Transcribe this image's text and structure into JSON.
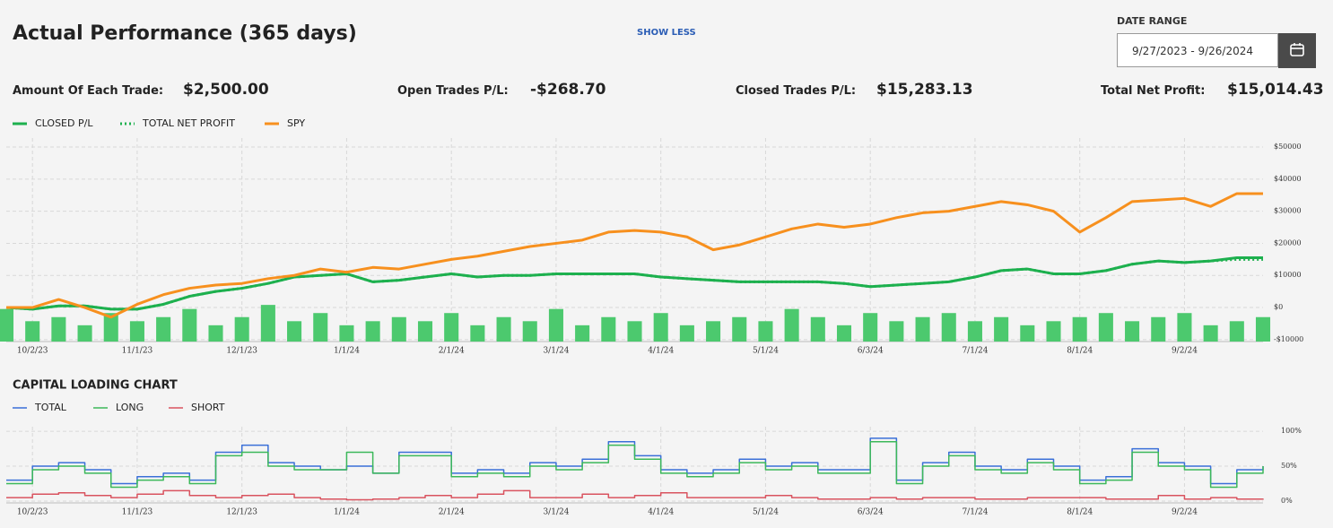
{
  "header": {
    "title": "Actual Performance (365 days)",
    "toggle": "SHOW LESS",
    "date_range": {
      "label": "DATE RANGE",
      "value": "9/27/2023 - 9/26/2024"
    }
  },
  "stats": [
    {
      "label": "Amount Of Each Trade:",
      "value": "$2,500.00"
    },
    {
      "label": "Open Trades P/L:",
      "value": "-$268.70"
    },
    {
      "label": "Closed Trades P/L:",
      "value": "$15,283.13"
    },
    {
      "label": "Total Net Profit:",
      "value": "$15,014.43"
    }
  ],
  "chart_data": [
    {
      "type": "line",
      "grid": true,
      "categories": [
        null,
        "10/2/23",
        null,
        null,
        null,
        "11/1/23",
        null,
        null,
        null,
        "12/1/23",
        null,
        null,
        null,
        "1/1/24",
        null,
        null,
        null,
        "2/1/24",
        null,
        null,
        null,
        "3/1/24",
        null,
        null,
        null,
        "4/1/24",
        null,
        null,
        null,
        "5/1/24",
        null,
        null,
        null,
        "6/3/24",
        null,
        null,
        null,
        "7/1/24",
        null,
        null,
        null,
        "8/1/24",
        null,
        null,
        null,
        "9/2/24",
        null,
        null,
        null
      ],
      "ylim": [
        -10600,
        52800
      ],
      "yticks": [
        {
          "value": -10000,
          "label": "-$10000"
        },
        {
          "value": 0,
          "label": "$0"
        },
        {
          "value": 10000,
          "label": "$10000"
        },
        {
          "value": 20000,
          "label": "$20000"
        },
        {
          "value": 30000,
          "label": "$30000"
        },
        {
          "value": 40000,
          "label": "$40000"
        },
        {
          "value": 50000,
          "label": "$50000"
        }
      ],
      "y2lim": [
        0,
        50
      ],
      "series": [
        {
          "type": "bar",
          "axis": "y2",
          "color": "#4cc96e",
          "values": [
            8,
            5,
            6,
            4,
            7,
            5,
            6,
            8,
            4,
            6,
            9,
            5,
            7,
            4,
            5,
            6,
            5,
            7,
            4,
            6,
            5,
            8,
            4,
            6,
            5,
            7,
            4,
            5,
            6,
            5,
            8,
            6,
            4,
            7,
            5,
            6,
            7,
            5,
            6,
            4,
            5,
            6,
            7,
            5,
            6,
            7,
            4,
            5,
            6
          ]
        },
        {
          "name": "CLOSED P/L",
          "color": "#1db04e",
          "line_style": "solid",
          "values": [
            0,
            -500,
            500,
            500,
            -500,
            -500,
            1000,
            3500,
            5000,
            6000,
            7500,
            9500,
            10000,
            10500,
            8000,
            8500,
            9500,
            10500,
            9500,
            10000,
            10000,
            10500,
            10500,
            10500,
            10500,
            9500,
            9000,
            8500,
            8000,
            8000,
            8000,
            8000,
            7500,
            6500,
            7000,
            7500,
            8000,
            9500,
            11500,
            12000,
            10500,
            10500,
            11500,
            13500,
            14500,
            14000,
            14500,
            15500,
            15500
          ]
        },
        {
          "name": "TOTAL NET PROFIT",
          "color": "#1db04e",
          "line_style": "dotted",
          "values": [
            0,
            -500,
            500,
            500,
            -500,
            -500,
            1000,
            3500,
            5000,
            6000,
            7500,
            9500,
            10000,
            10500,
            8000,
            8500,
            9500,
            10500,
            9500,
            10000,
            10000,
            10500,
            10500,
            10500,
            10500,
            9500,
            9000,
            8500,
            8000,
            8000,
            8000,
            8000,
            7500,
            6500,
            7000,
            7500,
            8000,
            9500,
            11500,
            12000,
            10500,
            10500,
            11500,
            13500,
            14500,
            14000,
            14500,
            15000,
            15000
          ]
        },
        {
          "name": "SPY",
          "color": "#f7901e",
          "line_style": "solid",
          "values": [
            0,
            0,
            2500,
            0,
            -3000,
            1000,
            4000,
            6000,
            7000,
            7500,
            9000,
            10000,
            12000,
            11000,
            12500,
            12000,
            13500,
            15000,
            16000,
            17500,
            19000,
            20000,
            21000,
            23500,
            24000,
            23500,
            22000,
            18000,
            19500,
            22000,
            24500,
            26000,
            25000,
            26000,
            28000,
            29500,
            30000,
            31500,
            33000,
            32000,
            30000,
            23500,
            28000,
            33000,
            33500,
            34000,
            31500,
            35500,
            35500
          ]
        }
      ]
    },
    {
      "type": "line",
      "step": true,
      "grid": true,
      "title": "CAPITAL LOADING CHART",
      "categories": [
        null,
        "10/2/23",
        null,
        null,
        null,
        "11/1/23",
        null,
        null,
        null,
        "12/1/23",
        null,
        null,
        null,
        "1/1/24",
        null,
        null,
        null,
        "2/1/24",
        null,
        null,
        null,
        "3/1/24",
        null,
        null,
        null,
        "4/1/24",
        null,
        null,
        null,
        "5/1/24",
        null,
        null,
        null,
        "6/3/24",
        null,
        null,
        null,
        "7/1/24",
        null,
        null,
        null,
        "8/1/24",
        null,
        null,
        null,
        "9/2/24",
        null,
        null,
        null
      ],
      "ylim": [
        -2.5,
        106.5
      ],
      "yticks": [
        {
          "value": 0,
          "label": "0%"
        },
        {
          "value": 50,
          "label": "50%"
        },
        {
          "value": 100,
          "label": "100%"
        }
      ],
      "series": [
        {
          "name": "TOTAL",
          "color": "#3a6fd8",
          "values": [
            30,
            50,
            55,
            45,
            25,
            35,
            40,
            30,
            70,
            80,
            55,
            50,
            45,
            50,
            40,
            70,
            70,
            40,
            45,
            40,
            55,
            50,
            60,
            85,
            65,
            45,
            40,
            45,
            60,
            50,
            55,
            45,
            45,
            90,
            30,
            55,
            70,
            50,
            45,
            60,
            50,
            30,
            35,
            75,
            55,
            50,
            25,
            45,
            50
          ]
        },
        {
          "name": "LONG",
          "color": "#3cb85a",
          "values": [
            25,
            45,
            50,
            40,
            20,
            30,
            35,
            25,
            65,
            70,
            50,
            45,
            45,
            70,
            40,
            65,
            65,
            35,
            40,
            35,
            50,
            45,
            55,
            80,
            60,
            40,
            35,
            40,
            55,
            45,
            50,
            40,
            40,
            85,
            25,
            50,
            65,
            45,
            40,
            55,
            45,
            25,
            30,
            70,
            50,
            45,
            20,
            40,
            50
          ]
        },
        {
          "name": "SHORT",
          "color": "#d9535f",
          "values": [
            5,
            10,
            12,
            8,
            5,
            10,
            15,
            8,
            5,
            8,
            10,
            5,
            3,
            2,
            3,
            5,
            8,
            5,
            10,
            15,
            5,
            5,
            10,
            5,
            8,
            12,
            5,
            5,
            5,
            8,
            5,
            3,
            3,
            5,
            3,
            5,
            5,
            3,
            3,
            5,
            5,
            5,
            3,
            3,
            8,
            3,
            5,
            3,
            2
          ]
        }
      ]
    }
  ]
}
